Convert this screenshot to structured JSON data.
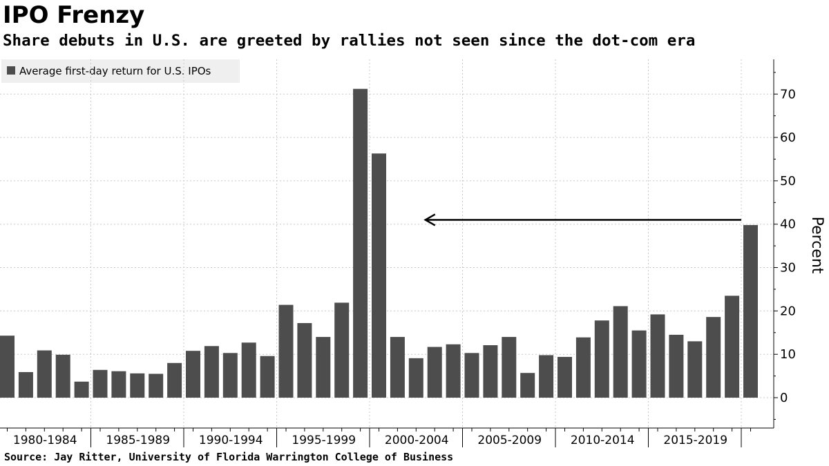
{
  "header": {
    "title": "IPO Frenzy",
    "subtitle": "Share debuts in U.S. are greeted by rallies not seen since the dot-com era"
  },
  "footer": {
    "source": "Source: Jay Ritter, University of Florida Warrington College of Business"
  },
  "colors": {
    "bar": "#4d4d4d",
    "grid": "#c8c8c8",
    "legend_bg": "#efefef",
    "arrow": "#000000"
  },
  "chart_data": {
    "type": "bar",
    "title": "IPO Frenzy",
    "subtitle": "Share debuts in U.S. are greeted by rallies not seen since the dot-com era",
    "ylabel": "Percent",
    "xlabel": "",
    "ylim": [
      -7,
      78
    ],
    "yticks": [
      0,
      10,
      20,
      30,
      40,
      50,
      60,
      70
    ],
    "legend": {
      "position": "top-left",
      "entries": [
        "Average first-day return for U.S. IPOs"
      ]
    },
    "x": [
      1980,
      1981,
      1982,
      1983,
      1984,
      1985,
      1986,
      1987,
      1988,
      1989,
      1990,
      1991,
      1992,
      1993,
      1994,
      1995,
      1996,
      1997,
      1998,
      1999,
      2000,
      2001,
      2002,
      2003,
      2004,
      2005,
      2006,
      2007,
      2008,
      2009,
      2010,
      2011,
      2012,
      2013,
      2014,
      2015,
      2016,
      2017,
      2018,
      2019,
      2020
    ],
    "series": [
      {
        "name": "Average first-day return for U.S. IPOs",
        "values": [
          14.3,
          5.9,
          10.9,
          9.9,
          3.7,
          6.4,
          6.1,
          5.6,
          5.5,
          8.0,
          10.8,
          11.9,
          10.3,
          12.7,
          9.6,
          21.4,
          17.2,
          14.0,
          21.9,
          71.2,
          56.3,
          14.0,
          9.1,
          11.7,
          12.3,
          10.3,
          12.1,
          14.0,
          5.7,
          9.8,
          9.4,
          13.9,
          17.8,
          21.1,
          15.5,
          19.2,
          14.5,
          13.0,
          18.6,
          23.5,
          39.8
        ]
      }
    ],
    "category_groups": [
      {
        "label": "1980-1984",
        "start": 1980,
        "end": 1984
      },
      {
        "label": "1985-1989",
        "start": 1985,
        "end": 1989
      },
      {
        "label": "1990-1994",
        "start": 1990,
        "end": 1994
      },
      {
        "label": "1995-1999",
        "start": 1995,
        "end": 1999
      },
      {
        "label": "2000-2004",
        "start": 2000,
        "end": 2004
      },
      {
        "label": "2005-2009",
        "start": 2005,
        "end": 2009
      },
      {
        "label": "2010-2014",
        "start": 2010,
        "end": 2014
      },
      {
        "label": "2015-2019",
        "start": 2015,
        "end": 2019
      }
    ],
    "annotation": {
      "type": "arrow",
      "from_x": 2019.5,
      "to_x": 2002.5,
      "y": 41
    },
    "grid": true
  }
}
